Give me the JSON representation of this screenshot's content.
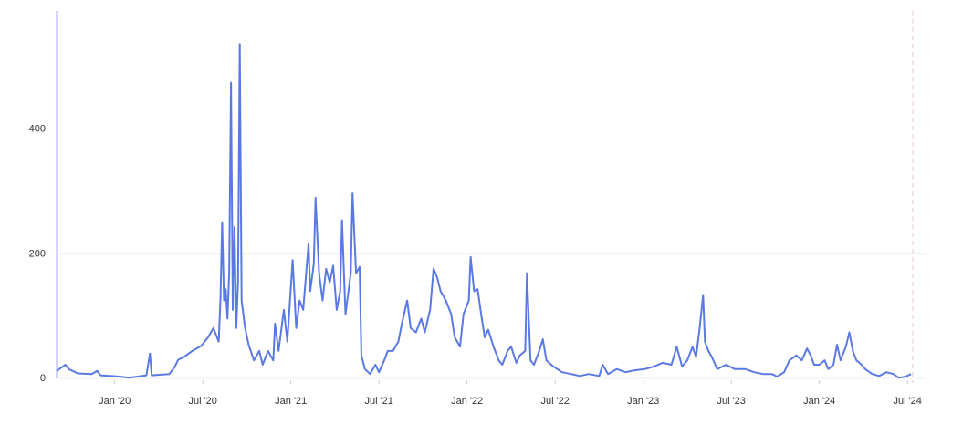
{
  "chart_data": {
    "type": "line",
    "xlim": [
      2019.67,
      2024.53
    ],
    "xticks": [
      {
        "value": 2020.0,
        "label": "Jan '20"
      },
      {
        "value": 2020.5,
        "label": "Jul '20"
      },
      {
        "value": 2021.0,
        "label": "Jan '21"
      },
      {
        "value": 2021.5,
        "label": "Jul '21"
      },
      {
        "value": 2022.0,
        "label": "Jan '22"
      },
      {
        "value": 2022.5,
        "label": "Jul '22"
      },
      {
        "value": 2023.0,
        "label": "Jan '23"
      },
      {
        "value": 2023.5,
        "label": "Jul '23"
      },
      {
        "value": 2024.0,
        "label": "Jan '24"
      },
      {
        "value": 2024.5,
        "label": "Jul '24"
      }
    ],
    "ylim": [
      0,
      590
    ],
    "yticks": [
      0,
      200,
      400
    ],
    "grid": true,
    "color": "#5b79e3",
    "x": [
      2019.67,
      2019.72,
      2019.74,
      2019.79,
      2019.87,
      2019.9,
      2019.92,
      2020.03,
      2020.08,
      2020.13,
      2020.18,
      2020.2,
      2020.21,
      2020.31,
      2020.34,
      2020.36,
      2020.39,
      2020.44,
      2020.49,
      2020.53,
      2020.56,
      2020.59,
      2020.6,
      2020.61,
      2020.62,
      2020.63,
      2020.64,
      2020.65,
      2020.66,
      2020.67,
      2020.68,
      2020.69,
      2020.7,
      2020.71,
      2020.72,
      2020.74,
      2020.76,
      2020.79,
      2020.82,
      2020.84,
      2020.87,
      2020.9,
      2020.91,
      2020.93,
      2020.96,
      2020.98,
      2021.01,
      2021.03,
      2021.05,
      2021.07,
      2021.1,
      2021.11,
      2021.13,
      2021.14,
      2021.16,
      2021.18,
      2021.2,
      2021.22,
      2021.24,
      2021.26,
      2021.28,
      2021.29,
      2021.31,
      2021.34,
      2021.35,
      2021.37,
      2021.39,
      2021.4,
      2021.42,
      2021.45,
      2021.48,
      2021.5,
      2021.53,
      2021.55,
      2021.58,
      2021.61,
      2021.63,
      2021.66,
      2021.68,
      2021.71,
      2021.74,
      2021.76,
      2021.79,
      2021.81,
      2021.83,
      2021.85,
      2021.88,
      2021.91,
      2021.93,
      2021.96,
      2021.98,
      2022.01,
      2022.02,
      2022.04,
      2022.06,
      2022.08,
      2022.1,
      2022.12,
      2022.15,
      2022.18,
      2022.2,
      2022.23,
      2022.25,
      2022.28,
      2022.3,
      2022.33,
      2022.34,
      2022.36,
      2022.38,
      2022.41,
      2022.43,
      2022.45,
      2022.49,
      2022.54,
      2022.59,
      2022.64,
      2022.69,
      2022.75,
      2022.77,
      2022.8,
      2022.85,
      2022.9,
      2022.95,
      2023.01,
      2023.06,
      2023.11,
      2023.16,
      2023.19,
      2023.22,
      2023.25,
      2023.28,
      2023.3,
      2023.32,
      2023.34,
      2023.35,
      2023.37,
      2023.39,
      2023.42,
      2023.47,
      2023.52,
      2023.58,
      2023.63,
      2023.68,
      2023.73,
      2023.76,
      2023.8,
      2023.83,
      2023.87,
      2023.9,
      2023.93,
      2023.95,
      2023.97,
      2024.0,
      2024.03,
      2024.05,
      2024.08,
      2024.1,
      2024.12,
      2024.15,
      2024.17,
      2024.19,
      2024.21,
      2024.24,
      2024.26,
      2024.3,
      2024.34,
      2024.38,
      2024.42,
      2024.45,
      2024.49,
      2024.52
    ],
    "values": [
      12,
      22,
      15,
      8,
      7,
      12,
      5,
      3,
      1,
      3,
      5,
      40,
      5,
      7,
      18,
      30,
      34,
      44,
      52,
      66,
      81,
      59,
      125,
      251,
      125,
      143,
      96,
      169,
      475,
      110,
      243,
      81,
      154,
      537,
      125,
      81,
      54,
      29,
      44,
      22,
      44,
      29,
      88,
      44,
      110,
      59,
      190,
      81,
      125,
      110,
      216,
      140,
      184,
      290,
      169,
      125,
      176,
      154,
      181,
      110,
      140,
      254,
      103,
      169,
      297,
      169,
      179,
      37,
      15,
      7,
      22,
      10,
      29,
      44,
      44,
      59,
      88,
      125,
      81,
      74,
      96,
      74,
      110,
      176,
      162,
      140,
      125,
      103,
      66,
      51,
      103,
      125,
      195,
      140,
      143,
      103,
      66,
      78,
      51,
      29,
      22,
      44,
      51,
      25,
      37,
      44,
      169,
      29,
      22,
      44,
      63,
      29,
      19,
      10,
      7,
      4,
      7,
      4,
      22,
      7,
      15,
      10,
      13,
      15,
      19,
      25,
      22,
      51,
      19,
      29,
      51,
      34,
      81,
      134,
      59,
      44,
      34,
      15,
      22,
      15,
      15,
      10,
      7,
      7,
      3,
      10,
      29,
      37,
      29,
      48,
      37,
      22,
      22,
      29,
      15,
      22,
      54,
      29,
      51,
      74,
      44,
      29,
      22,
      15,
      7,
      4,
      10,
      7,
      1,
      3,
      7
    ]
  }
}
